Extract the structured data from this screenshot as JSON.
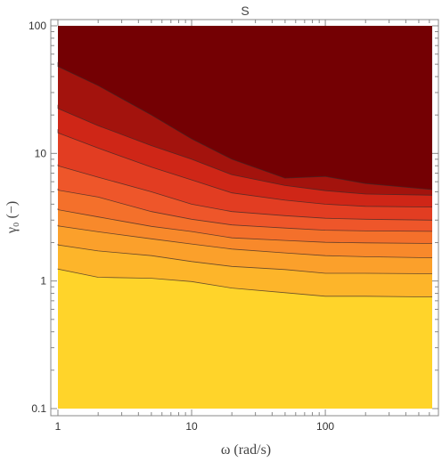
{
  "chart_data": {
    "type": "contour",
    "title": "S",
    "xlabel": "ω (rad/s)",
    "ylabel": "γ₀ (−)",
    "x_scale": "log",
    "y_scale": "log",
    "xlim": [
      0.9,
      630
    ],
    "ylim": [
      0.1,
      100
    ],
    "x_ticks": [
      {
        "value": 1,
        "label": "1"
      },
      {
        "value": 10,
        "label": "10"
      },
      {
        "value": 100,
        "label": "100"
      }
    ],
    "y_ticks": [
      {
        "value": 0.1,
        "label": "0.1"
      },
      {
        "value": 1,
        "label": "1"
      },
      {
        "value": 10,
        "label": "10"
      },
      {
        "value": 100,
        "label": "100"
      }
    ],
    "grid": false,
    "legend": "none",
    "colors": {
      "background": "#ffffff",
      "frame": "#888888",
      "contour_line": "#3a2a2a",
      "bands": [
        "#ffd42a",
        "#fdb52a",
        "#fba02b",
        "#f8892b",
        "#f4702b",
        "#ee562a",
        "#e23d22",
        "#cf2617",
        "#a3130d",
        "#740003"
      ]
    },
    "contour_levels": [
      {
        "x": [
          0.9,
          1,
          2,
          5,
          10,
          20,
          50,
          100,
          200,
          630
        ],
        "y": [
          1.25,
          1.24,
          1.07,
          1.05,
          0.99,
          0.88,
          0.81,
          0.76,
          0.76,
          0.75
        ]
      },
      {
        "x": [
          0.9,
          1,
          2,
          5,
          10,
          20,
          50,
          100,
          200,
          630
        ],
        "y": [
          1.95,
          1.92,
          1.72,
          1.58,
          1.42,
          1.3,
          1.23,
          1.15,
          1.15,
          1.14
        ]
      },
      {
        "x": [
          0.9,
          1,
          2,
          5,
          10,
          20,
          50,
          100,
          200,
          630
        ],
        "y": [
          2.75,
          2.7,
          2.43,
          2.14,
          1.95,
          1.78,
          1.66,
          1.58,
          1.55,
          1.52
        ]
      },
      {
        "x": [
          0.9,
          1,
          2,
          5,
          10,
          20,
          50,
          100,
          200,
          630
        ],
        "y": [
          3.7,
          3.62,
          3.18,
          2.68,
          2.44,
          2.18,
          2.08,
          2.01,
          1.99,
          1.97
        ]
      },
      {
        "x": [
          0.9,
          1,
          2,
          5,
          10,
          20,
          50,
          100,
          200,
          630
        ],
        "y": [
          5.3,
          5.15,
          4.55,
          3.5,
          3.05,
          2.75,
          2.6,
          2.5,
          2.47,
          2.45
        ]
      },
      {
        "x": [
          0.9,
          1,
          2,
          5,
          10,
          20,
          50,
          100,
          200,
          630
        ],
        "y": [
          8.2,
          8.0,
          6.5,
          5.0,
          4.0,
          3.5,
          3.25,
          3.1,
          3.05,
          3.0
        ]
      },
      {
        "x": [
          0.9,
          1,
          2,
          5,
          10,
          20,
          50,
          100,
          200,
          630
        ],
        "y": [
          15.5,
          14.5,
          11.0,
          7.8,
          6.2,
          4.9,
          4.3,
          4.0,
          3.85,
          3.8
        ]
      },
      {
        "x": [
          0.9,
          1,
          2,
          5,
          10,
          20,
          50,
          100,
          200,
          630
        ],
        "y": [
          24.0,
          22.5,
          16.5,
          11.5,
          9.0,
          6.8,
          5.6,
          5.1,
          4.8,
          4.7
        ]
      },
      {
        "x": [
          0.9,
          1,
          2,
          5,
          10,
          20,
          50,
          100,
          200,
          630
        ],
        "y": [
          52.0,
          48.0,
          34.0,
          20.0,
          13.0,
          9.0,
          6.4,
          6.6,
          5.8,
          5.2
        ]
      }
    ]
  }
}
